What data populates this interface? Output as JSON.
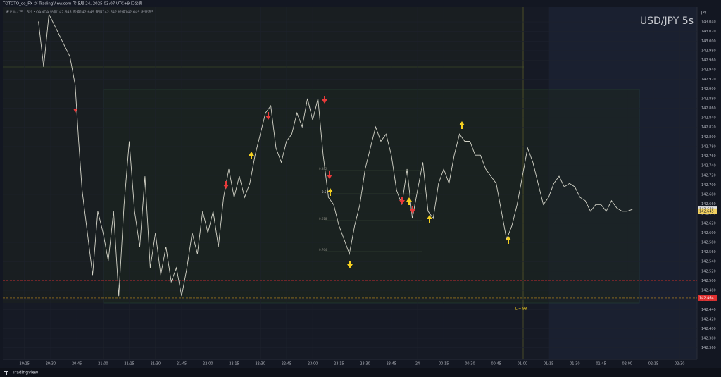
{
  "header": "TOTOTO_oo_FX が TradingView.com で 5月 24, 2025 03:07 UTC+9 に公開",
  "footer": "TradingView",
  "chart_data": {
    "type": "line",
    "title": "USD/JPY 5s",
    "subtitle": "米ドル／円・5秒・OANDA 始値142.645 高値142.649 安値142.642 終値142.649 出来高5",
    "y_unit": "JPY",
    "color": "#d4d4c8",
    "grid": true,
    "x": [
      "20:23",
      "20:26",
      "20:29",
      "20:33",
      "20:37",
      "20:41",
      "20:44",
      "20:46",
      "20:48",
      "20:51",
      "20:54",
      "20:57",
      "21:00",
      "21:03",
      "21:06",
      "21:09",
      "21:12",
      "21:15",
      "21:18",
      "21:21",
      "21:24",
      "21:27",
      "21:30",
      "21:33",
      "21:36",
      "21:39",
      "21:42",
      "21:45",
      "21:48",
      "21:51",
      "21:54",
      "21:57",
      "22:00",
      "22:03",
      "22:06",
      "22:09",
      "22:12",
      "22:15",
      "22:18",
      "22:21",
      "22:24",
      "22:27",
      "22:30",
      "22:33",
      "22:36",
      "22:39",
      "22:42",
      "22:45",
      "22:48",
      "22:51",
      "22:54",
      "22:57",
      "23:00",
      "23:03",
      "23:06",
      "23:09",
      "23:12",
      "23:15",
      "23:18",
      "23:21",
      "23:24",
      "23:27",
      "23:30",
      "23:33",
      "23:36",
      "23:39",
      "23:42",
      "23:45",
      "23:48",
      "23:51",
      "23:54",
      "23:57",
      "00:00",
      "00:03",
      "00:06",
      "00:09",
      "00:12",
      "00:15",
      "00:18",
      "00:21",
      "00:24",
      "00:27",
      "00:30",
      "00:33",
      "00:36",
      "00:39",
      "00:42",
      "00:45",
      "00:48",
      "00:51",
      "00:54",
      "00:57",
      "01:00",
      "01:03",
      "01:06",
      "01:09",
      "01:12",
      "01:15",
      "01:18",
      "01:21",
      "01:24",
      "01:27",
      "01:30",
      "01:33",
      "01:36",
      "01:39",
      "01:42",
      "01:45",
      "01:48",
      "01:51",
      "01:54",
      "01:57",
      "02:00",
      "02:03"
    ],
    "values": [
      143.041,
      142.946,
      143.056,
      143.027,
      142.997,
      142.968,
      142.909,
      142.791,
      142.689,
      142.6,
      142.512,
      142.645,
      142.6,
      142.542,
      142.645,
      142.468,
      142.659,
      142.791,
      142.645,
      142.571,
      142.718,
      142.527,
      142.6,
      142.512,
      142.571,
      142.498,
      142.527,
      142.468,
      142.527,
      142.6,
      142.556,
      142.645,
      142.6,
      142.645,
      142.571,
      142.674,
      142.733,
      142.674,
      142.718,
      142.674,
      142.703,
      142.762,
      142.806,
      142.85,
      142.865,
      142.777,
      142.747,
      142.791,
      142.806,
      142.85,
      142.821,
      142.88,
      142.835,
      142.88,
      142.762,
      142.674,
      142.659,
      142.615,
      142.586,
      142.556,
      142.615,
      142.659,
      142.733,
      142.777,
      142.821,
      142.791,
      142.806,
      142.762,
      142.689,
      142.659,
      142.733,
      142.63,
      142.689,
      142.747,
      142.645,
      142.63,
      142.703,
      142.733,
      142.703,
      142.762,
      142.806,
      142.791,
      142.791,
      142.762,
      142.762,
      142.733,
      142.718,
      142.703,
      142.645,
      142.586,
      142.615,
      142.659,
      142.718,
      142.777,
      142.747,
      142.703,
      142.659,
      142.674,
      142.703,
      142.718,
      142.696,
      142.703,
      142.696,
      142.674,
      142.667,
      142.645,
      142.659,
      142.659,
      142.645,
      142.667,
      142.652,
      142.645,
      142.645,
      142.649
    ],
    "xlim": [
      "20:01",
      "02:40"
    ],
    "xticks": [
      "20:15",
      "20:30",
      "20:45",
      "21:00",
      "21:15",
      "21:30",
      "21:45",
      "22:00",
      "22:15",
      "22:30",
      "22:45",
      "23:00",
      "23:15",
      "23:30",
      "23:45",
      {
        "value": "00:00",
        "label": "24"
      },
      "00:15",
      "00:30",
      "00:45",
      "01:00",
      "01:15",
      "01:30",
      "01:45",
      "02:00",
      "02:15",
      "02:30"
    ],
    "ylim": [
      142.336,
      143.071
    ],
    "yticks": [
      {
        "value": 143.04,
        "label": "143.040"
      },
      {
        "value": 143.02,
        "label": "143.020"
      },
      {
        "value": 143.0,
        "label": "143.000"
      },
      {
        "value": 142.98,
        "label": "142.980"
      },
      {
        "value": 142.96,
        "label": "142.960"
      },
      {
        "value": 142.94,
        "label": "142.940"
      },
      {
        "value": 142.92,
        "label": "142.920"
      },
      {
        "value": 142.9,
        "label": "142.900"
      },
      {
        "value": 142.88,
        "label": "142.880"
      },
      {
        "value": 142.86,
        "label": "142.860"
      },
      {
        "value": 142.84,
        "label": "142.840"
      },
      {
        "value": 142.82,
        "label": "142.820"
      },
      {
        "value": 142.8,
        "label": "142.800"
      },
      {
        "value": 142.78,
        "label": "142.780"
      },
      {
        "value": 142.76,
        "label": "142.760"
      },
      {
        "value": 142.74,
        "label": "142.740"
      },
      {
        "value": 142.72,
        "label": "142.720"
      },
      {
        "value": 142.7,
        "label": "142.700"
      },
      {
        "value": 142.68,
        "label": "142.680"
      },
      {
        "value": 142.66,
        "label": "142.660"
      },
      {
        "value": 142.64,
        "label": "142.640"
      },
      {
        "value": 142.62,
        "label": "142.620"
      },
      {
        "value": 142.6,
        "label": "142.600"
      },
      {
        "value": 142.58,
        "label": "142.580"
      },
      {
        "value": 142.56,
        "label": "142.560"
      },
      {
        "value": 142.54,
        "label": "142.540"
      },
      {
        "value": 142.52,
        "label": "142.520"
      },
      {
        "value": 142.5,
        "label": "142.500"
      },
      {
        "value": 142.48,
        "label": "142.480"
      },
      {
        "value": 142.46,
        "label": "142.460"
      },
      {
        "value": 142.44,
        "label": "142.440"
      },
      {
        "value": 142.42,
        "label": "142.420"
      },
      {
        "value": 142.4,
        "label": "142.400"
      },
      {
        "value": 142.38,
        "label": "142.380"
      },
      {
        "value": 142.36,
        "label": "142.360"
      }
    ],
    "levels": [
      {
        "value": 142.8,
        "color": "#8a3b2a"
      },
      {
        "value": 142.7,
        "color": "#8a7a2a"
      },
      {
        "value": 142.6,
        "color": "#8a7a2a"
      },
      {
        "value": 142.5,
        "color": "#a02a2a"
      },
      {
        "value": 142.464,
        "color": "#c8901e"
      }
    ],
    "price_labels": [
      {
        "value": 142.649,
        "color": "#e0e0e0",
        "text_color": "#131722"
      },
      {
        "value": 142.645,
        "color": "#f0d060",
        "text_color": "#131722"
      },
      {
        "value": 142.464,
        "color": "#e03030",
        "text_color": "#ffffff"
      }
    ],
    "annotations": [
      "0.382",
      "0.5",
      "0.618",
      "0.764",
      "L = 98"
    ]
  }
}
